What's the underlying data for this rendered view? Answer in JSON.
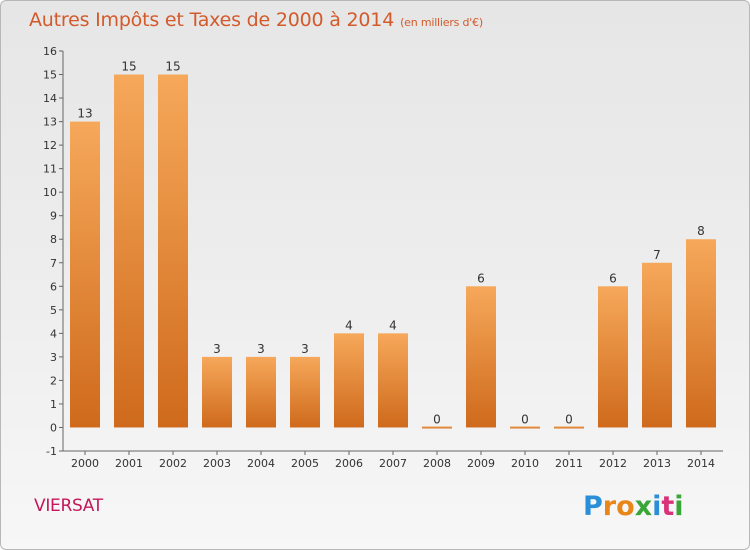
{
  "title": "Autres Impôts et Taxes de 2000 à 2014",
  "subtitle": "(en milliers d'€)",
  "location": "VIERSAT",
  "logo": "Proxiti",
  "colors": {
    "title": "#d35a2a",
    "location": "#c2185b",
    "bar_light": "#f6a85a",
    "bar_dark": "#cf6a1c"
  },
  "chart_data": {
    "type": "bar",
    "title": "Autres Impôts et Taxes de 2000 à 2014",
    "subtitle": "(en milliers d'€)",
    "xlabel": "",
    "ylabel": "",
    "categories": [
      "2000",
      "2001",
      "2002",
      "2003",
      "2004",
      "2005",
      "2006",
      "2007",
      "2008",
      "2009",
      "2010",
      "2011",
      "2012",
      "2013",
      "2014"
    ],
    "values": [
      13,
      15,
      15,
      3,
      3,
      3,
      4,
      4,
      0,
      6,
      0,
      0,
      6,
      7,
      8
    ],
    "data_labels": [
      "13",
      "15",
      "15",
      "3",
      "3",
      "3",
      "4",
      "4",
      "0",
      "6",
      "0",
      "0",
      "6",
      "7",
      "8"
    ],
    "ylim": [
      -1,
      16
    ],
    "yticks": [
      -1,
      0,
      1,
      2,
      3,
      4,
      5,
      6,
      7,
      8,
      9,
      10,
      11,
      12,
      13,
      14,
      15,
      16
    ],
    "grid": false,
    "legend": "none"
  }
}
